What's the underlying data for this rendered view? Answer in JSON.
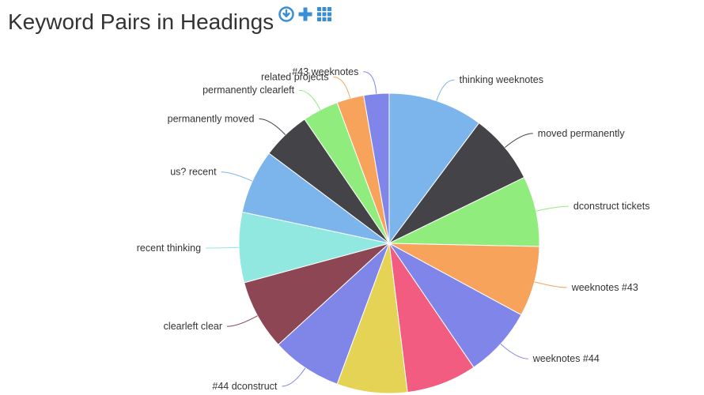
{
  "header": {
    "title": "Keyword Pairs in Headings",
    "tools": [
      {
        "icon": "download-icon",
        "color": "#3a8ed4"
      },
      {
        "icon": "plus-icon",
        "color": "#3a8ed4"
      },
      {
        "icon": "grid-icon",
        "color": "#3a8ed4"
      }
    ]
  },
  "chart_data": {
    "type": "pie",
    "title": "Keyword Pairs in Headings",
    "start_angle_deg": 0,
    "slices": [
      {
        "label": "thinking weeknotes",
        "value": 10.5,
        "color": "#7cb5ec"
      },
      {
        "label": "moved permanently",
        "value": 7.8,
        "color": "#434348"
      },
      {
        "label": "dconstruct tickets",
        "value": 7.8,
        "color": "#90ed7d"
      },
      {
        "label": "weeknotes #43",
        "value": 7.8,
        "color": "#f7a35c"
      },
      {
        "label": "weeknotes #44",
        "value": 7.8,
        "color": "#8085e9"
      },
      {
        "label": "",
        "value": 7.8,
        "color": "#f15c80"
      },
      {
        "label": "",
        "value": 7.8,
        "color": "#e4d354"
      },
      {
        "label": "#44 dconstruct",
        "value": 7.8,
        "color": "#8085e8"
      },
      {
        "label": "clearleft clear",
        "value": 7.8,
        "color": "#8d4653"
      },
      {
        "label": "recent thinking",
        "value": 7.8,
        "color": "#91e8e1"
      },
      {
        "label": "us? recent",
        "value": 7.1,
        "color": "#7cb5ec"
      },
      {
        "label": "permanently moved",
        "value": 5.4,
        "color": "#434348"
      },
      {
        "label": "permanently clearleft",
        "value": 4.0,
        "color": "#90ed7d"
      },
      {
        "label": "related projects",
        "value": 3.0,
        "color": "#f7a35c"
      },
      {
        "label": "#43 weeknotes",
        "value": 2.8,
        "color": "#8085e9"
      }
    ]
  }
}
